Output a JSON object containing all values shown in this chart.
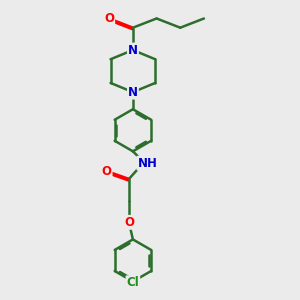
{
  "bg_color": "#ebebeb",
  "bond_color": "#2d6e2d",
  "bond_width": 1.8,
  "atom_colors": {
    "O": "#ff0000",
    "N": "#0000cc",
    "Cl": "#228B22",
    "C": "#2d6e2d"
  },
  "font_size": 8.5,
  "fig_size": [
    3.0,
    3.0
  ],
  "dpi": 100
}
